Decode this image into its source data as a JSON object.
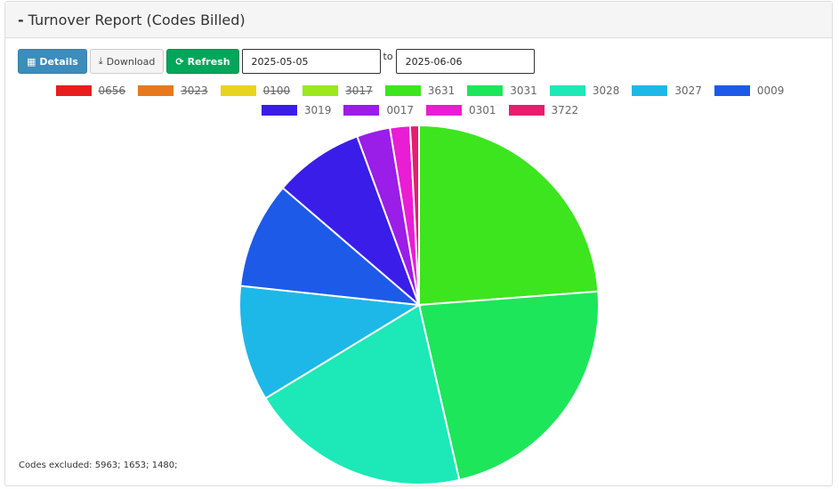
{
  "header": {
    "collapse": "-",
    "title": "Turnover Report (Codes Billed)"
  },
  "toolbar": {
    "buttons": [
      "Details",
      "Download",
      "Refresh"
    ],
    "from": "2025-05-05",
    "separator": "to",
    "to": "2025-06-06"
  },
  "chart_data": {
    "type": "pie",
    "categories": [
      "0656",
      "3023",
      "0100",
      "3017",
      "3631",
      "3031",
      "3028",
      "3027",
      "0009",
      "3019",
      "0017",
      "0301",
      "3722"
    ],
    "values": [
      null,
      null,
      null,
      null,
      23.8,
      22.6,
      19.9,
      10.4,
      9.6,
      8.1,
      3.0,
      1.8,
      0.8
    ],
    "colors": [
      "#e81d1d",
      "#e8781d",
      "#e8d41d",
      "#9ae81d",
      "#3de51e",
      "#1de65a",
      "#1de8b8",
      "#1db8e8",
      "#1d5ae8",
      "#3a1de8",
      "#9a1de8",
      "#e81dd4",
      "#e81d6e"
    ],
    "hidden": [
      true,
      true,
      true,
      true,
      false,
      false,
      false,
      false,
      false,
      false,
      false,
      false,
      false
    ]
  },
  "footer": {
    "note": "Codes excluded: 5963; 1653; 1480;"
  }
}
